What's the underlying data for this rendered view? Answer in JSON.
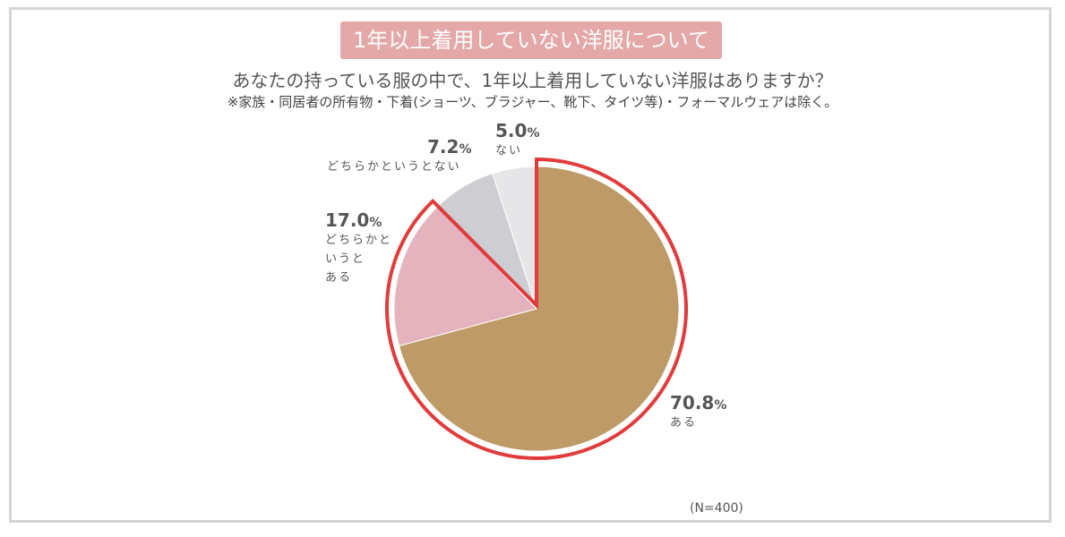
{
  "title": "1年以上着用していない洋服について",
  "question": "あなたの持っている服の中で、1年以上着用していない洋服はありますか？",
  "note": "※家族・同居者の所有物・下着(ショーツ、ブラジャー、靴下、タイツ等)・フォーマルウェアは除く。",
  "sample_size": "(N=400)",
  "chart_data": {
    "type": "pie",
    "slices": [
      {
        "label": "ある",
        "value": 70.8,
        "value_text": "70.8",
        "unit": "%",
        "color": "#bd9a66"
      },
      {
        "label": "どちらかというとある",
        "label_lines": [
          "どちらかと",
          "いうと",
          "ある"
        ],
        "value": 17.0,
        "value_text": "17.0",
        "unit": "%",
        "color": "#e4b3bd"
      },
      {
        "label": "どちらかというとない",
        "value": 7.2,
        "value_text": "7.2",
        "unit": "%",
        "color": "#cdcdd2"
      },
      {
        "label": "ない",
        "value": 5.0,
        "value_text": "5.0",
        "unit": "%",
        "color": "#e6e6e8"
      }
    ],
    "start_angle": "12 o'clock",
    "direction": "clockwise",
    "highlight": {
      "slices": [
        "ある",
        "どちらかというとある"
      ],
      "color": "#e23b3b"
    }
  }
}
